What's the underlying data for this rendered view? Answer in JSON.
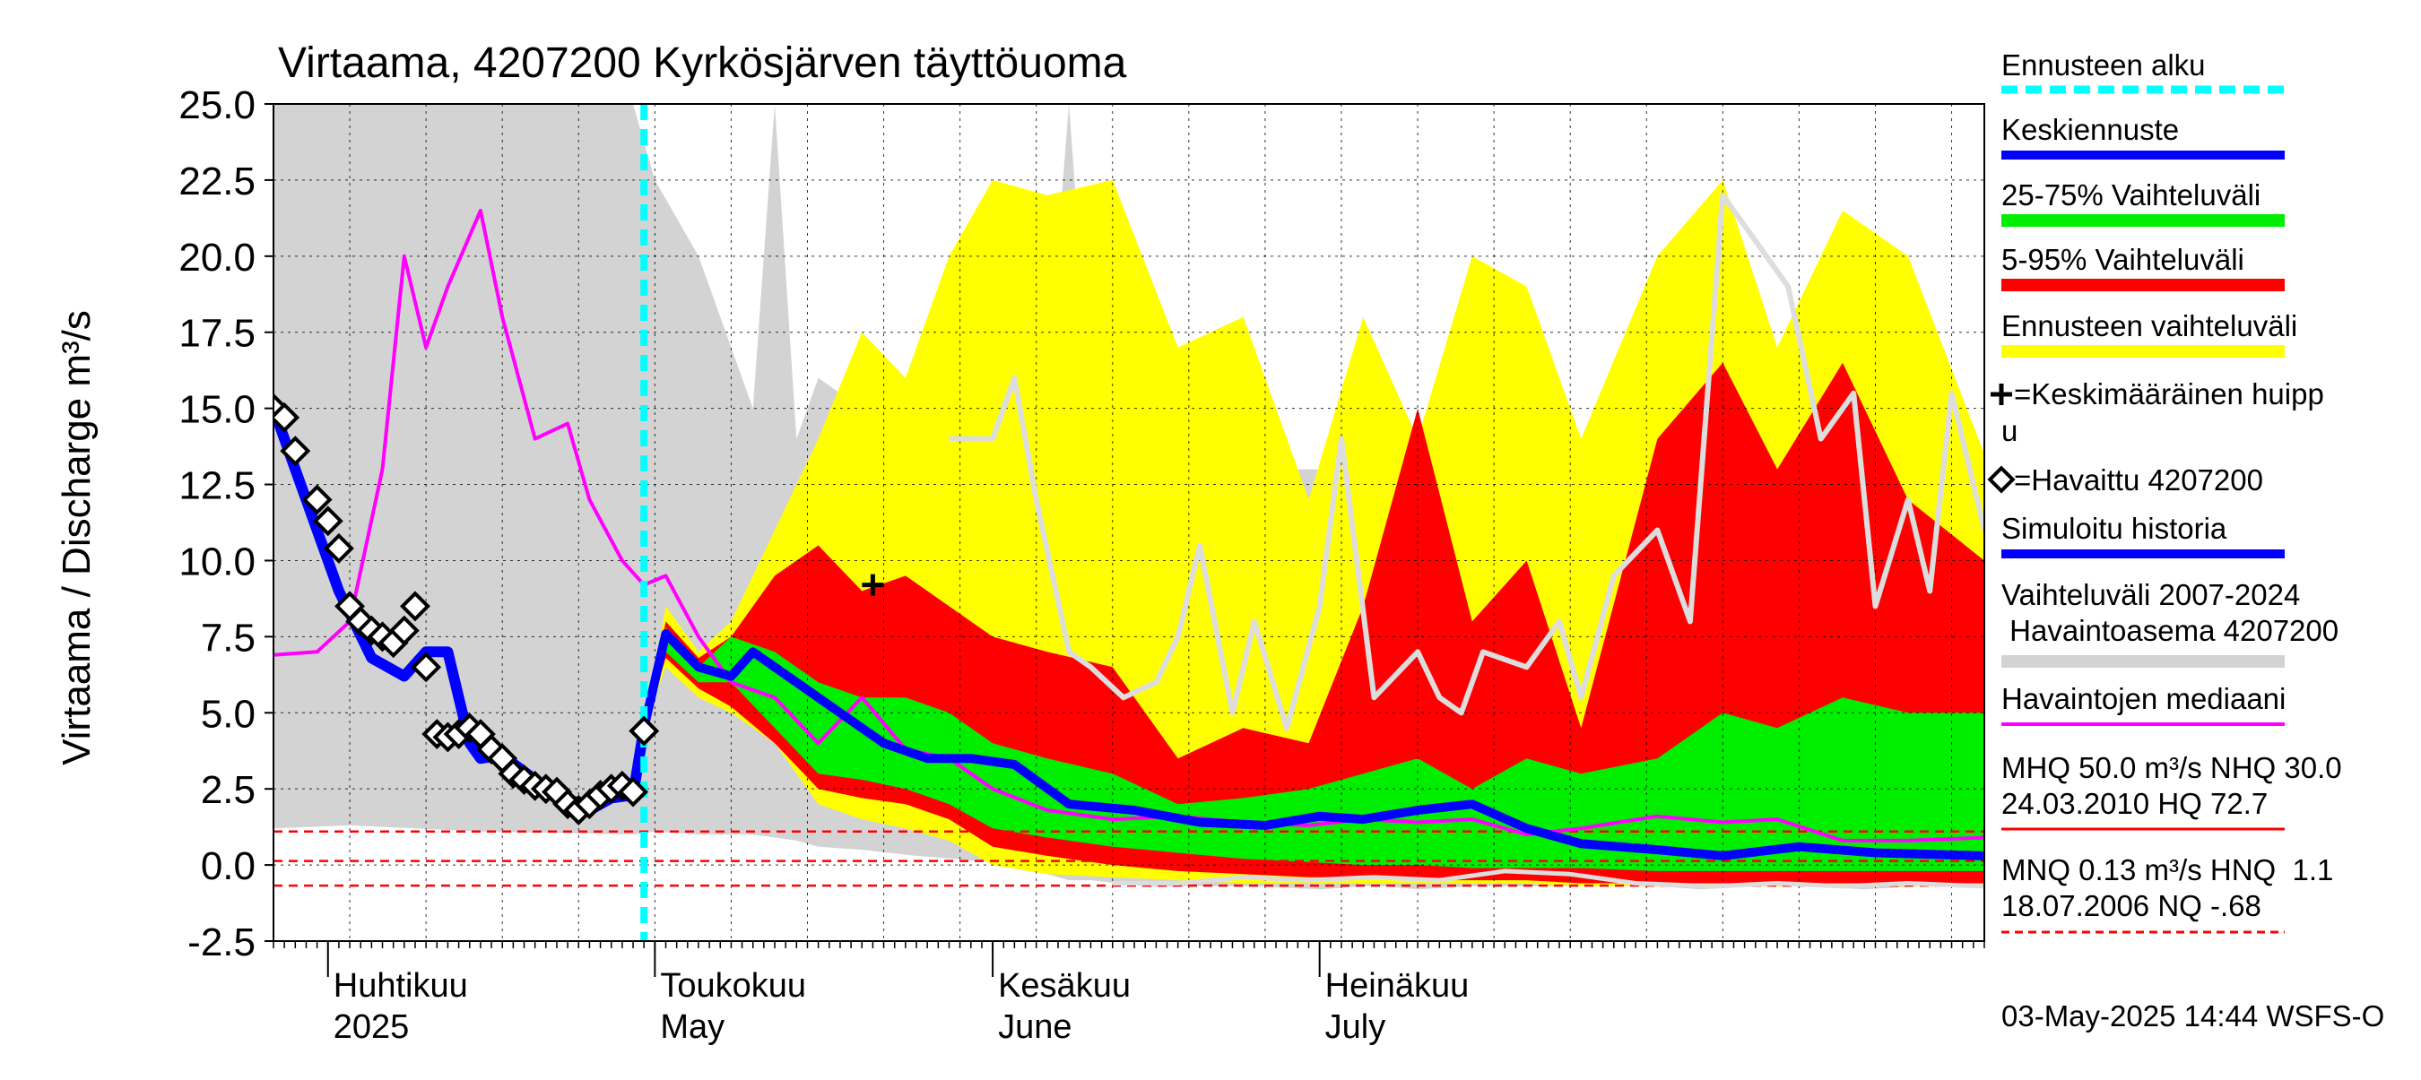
{
  "chart_data": {
    "type": "area",
    "title": "Virtaama, 4207200 Kyrkösjärven täyttöuoma",
    "ylabel": "Virtaama / Discharge    m³/s",
    "ylim": [
      -2.5,
      25.0
    ],
    "yticks": [
      "25.0",
      "22.5",
      "20.0",
      "17.5",
      "15.0",
      "12.5",
      "10.0",
      "7.5",
      "5.0",
      "2.5",
      "0.0",
      "-2.5"
    ],
    "xlim": [
      "2025-03-27",
      "2025-08-31"
    ],
    "x_months": [
      {
        "date": "2025-04-01",
        "fi": "Huhtikuu",
        "en": "2025"
      },
      {
        "date": "2025-05-01",
        "fi": "Toukokuu",
        "en": "May"
      },
      {
        "date": "2025-06-01",
        "fi": "Kesäkuu",
        "en": "June"
      },
      {
        "date": "2025-07-01",
        "fi": "Heinäkuu",
        "en": "July"
      }
    ],
    "grid": true,
    "forecast_start": "2025-04-30",
    "colors": {
      "history_range": "#d3d3d3",
      "forecast_range": "#ffff00",
      "p5_95": "#ff0000",
      "p25_75": "#00ee00",
      "mean_forecast": "#0000ff",
      "simulated": "#0000ff",
      "median_obs": "#ff00ff",
      "forecast_start": "#00ffff",
      "history_max": "#dddddd",
      "ref_lines": "#ff0000"
    },
    "history_range": {
      "x": [
        "2025-03-27",
        "2025-04-03",
        "2025-04-15",
        "2025-04-29",
        "2025-05-01",
        "2025-05-05",
        "2025-05-10",
        "2025-05-12",
        "2025-05-14",
        "2025-05-16",
        "2025-05-20",
        "2025-05-25",
        "2025-06-01",
        "2025-06-06",
        "2025-06-08",
        "2025-06-10",
        "2025-06-15",
        "2025-06-20",
        "2025-06-25",
        "2025-07-01",
        "2025-07-05",
        "2025-07-07",
        "2025-07-10",
        "2025-07-15",
        "2025-07-20",
        "2025-07-25",
        "2025-08-01",
        "2025-08-05",
        "2025-08-10",
        "2025-08-15",
        "2025-08-20",
        "2025-08-25",
        "2025-08-31"
      ],
      "upper": [
        25.0,
        25.0,
        25.0,
        25.0,
        22.5,
        20.0,
        15.0,
        25.0,
        14.0,
        16.0,
        15.0,
        14.0,
        15.0,
        16.0,
        25.0,
        15.0,
        14.0,
        14.0,
        13.0,
        13.0,
        14.0,
        14.5,
        13.0,
        14.0,
        13.0,
        12.0,
        11.0,
        12.0,
        11.0,
        12.0,
        10.0,
        9.0,
        8.0
      ],
      "lower": [
        1.2,
        1.3,
        1.1,
        1.0,
        1.1,
        1.0,
        1.0,
        0.9,
        0.8,
        0.6,
        0.5,
        0.3,
        0.1,
        -0.3,
        -0.5,
        -0.5,
        -0.7,
        -0.7,
        -0.7,
        -0.8,
        -0.7,
        -0.7,
        -0.8,
        -0.7,
        -0.7,
        -0.7,
        -0.7,
        -0.8,
        -0.7,
        -0.7,
        -0.8,
        -0.7,
        -0.7
      ]
    },
    "forecast_range": {
      "x": [
        "2025-04-30",
        "2025-05-02",
        "2025-05-05",
        "2025-05-08",
        "2025-05-12",
        "2025-05-16",
        "2025-05-20",
        "2025-05-24",
        "2025-05-28",
        "2025-06-01",
        "2025-06-06",
        "2025-06-12",
        "2025-06-18",
        "2025-06-24",
        "2025-06-30",
        "2025-07-05",
        "2025-07-10",
        "2025-07-15",
        "2025-07-20",
        "2025-07-25",
        "2025-08-01",
        "2025-08-07",
        "2025-08-12",
        "2025-08-18",
        "2025-08-24",
        "2025-08-31"
      ],
      "upper": [
        4.5,
        8.5,
        7.0,
        8.0,
        11.0,
        14.0,
        17.5,
        16.0,
        20.0,
        22.5,
        22.0,
        22.5,
        17.0,
        18.0,
        12.0,
        18.0,
        14.0,
        20.0,
        19.0,
        14.0,
        20.0,
        22.5,
        17.0,
        21.5,
        20.0,
        13.5
      ],
      "lower": [
        4.5,
        6.5,
        5.5,
        5.0,
        4.0,
        2.0,
        1.5,
        1.2,
        0.8,
        0.0,
        -0.3,
        -0.4,
        -0.5,
        -0.6,
        -0.6,
        -0.6,
        -0.6,
        -0.6,
        -0.6,
        -0.7,
        -0.7,
        -0.7,
        -0.7,
        -0.7,
        -0.7,
        -0.7
      ]
    },
    "p5_95": {
      "x": [
        "2025-04-30",
        "2025-05-02",
        "2025-05-05",
        "2025-05-08",
        "2025-05-12",
        "2025-05-16",
        "2025-05-20",
        "2025-05-24",
        "2025-05-28",
        "2025-06-01",
        "2025-06-06",
        "2025-06-12",
        "2025-06-18",
        "2025-06-24",
        "2025-06-30",
        "2025-07-05",
        "2025-07-10",
        "2025-07-15",
        "2025-07-20",
        "2025-07-25",
        "2025-08-01",
        "2025-08-07",
        "2025-08-12",
        "2025-08-18",
        "2025-08-24",
        "2025-08-31"
      ],
      "upper": [
        4.5,
        8.0,
        6.8,
        7.5,
        9.5,
        10.5,
        9.0,
        9.5,
        8.5,
        7.5,
        7.0,
        6.5,
        3.5,
        4.5,
        4.0,
        8.5,
        15.0,
        8.0,
        10.0,
        4.5,
        14.0,
        16.5,
        13.0,
        16.5,
        12.0,
        10.0
      ],
      "lower": [
        4.5,
        6.8,
        5.8,
        5.2,
        4.0,
        2.5,
        2.2,
        2.0,
        1.5,
        0.6,
        0.3,
        0.0,
        -0.2,
        -0.3,
        -0.4,
        -0.4,
        -0.5,
        -0.5,
        -0.5,
        -0.6,
        -0.6,
        -0.6,
        -0.6,
        -0.6,
        -0.6,
        -0.6
      ]
    },
    "p25_75": {
      "x": [
        "2025-04-30",
        "2025-05-02",
        "2025-05-05",
        "2025-05-08",
        "2025-05-12",
        "2025-05-16",
        "2025-05-20",
        "2025-05-24",
        "2025-05-28",
        "2025-06-01",
        "2025-06-06",
        "2025-06-12",
        "2025-06-18",
        "2025-06-24",
        "2025-06-30",
        "2025-07-05",
        "2025-07-10",
        "2025-07-15",
        "2025-07-20",
        "2025-07-25",
        "2025-08-01",
        "2025-08-07",
        "2025-08-12",
        "2025-08-18",
        "2025-08-24",
        "2025-08-31"
      ],
      "upper": [
        4.5,
        7.8,
        6.5,
        7.5,
        7.0,
        6.0,
        5.5,
        5.5,
        5.0,
        4.0,
        3.5,
        3.0,
        2.0,
        2.2,
        2.5,
        3.0,
        3.5,
        2.5,
        3.5,
        3.0,
        3.5,
        5.0,
        4.5,
        5.5,
        5.0,
        5.0
      ],
      "lower": [
        4.5,
        7.0,
        6.0,
        6.0,
        4.5,
        3.0,
        2.8,
        2.5,
        2.0,
        1.2,
        0.9,
        0.6,
        0.4,
        0.2,
        0.1,
        0.0,
        0.0,
        -0.1,
        -0.1,
        -0.1,
        -0.2,
        -0.2,
        -0.2,
        -0.2,
        -0.2,
        -0.2
      ]
    },
    "mean_forecast": {
      "x": [
        "2025-04-30",
        "2025-05-02",
        "2025-05-05",
        "2025-05-08",
        "2025-05-10",
        "2025-05-14",
        "2025-05-18",
        "2025-05-22",
        "2025-05-26",
        "2025-05-30",
        "2025-06-03",
        "2025-06-08",
        "2025-06-14",
        "2025-06-20",
        "2025-06-26",
        "2025-07-01",
        "2025-07-05",
        "2025-07-10",
        "2025-07-15",
        "2025-07-20",
        "2025-07-25",
        "2025-08-01",
        "2025-08-07",
        "2025-08-14",
        "2025-08-21",
        "2025-08-31"
      ],
      "y": [
        4.5,
        7.6,
        6.5,
        6.2,
        7.0,
        6.0,
        5.0,
        4.0,
        3.5,
        3.5,
        3.3,
        2.0,
        1.8,
        1.4,
        1.3,
        1.6,
        1.5,
        1.8,
        2.0,
        1.2,
        0.7,
        0.5,
        0.3,
        0.6,
        0.4,
        0.3
      ]
    },
    "simulated_history": {
      "x": [
        "2025-03-27",
        "2025-03-29",
        "2025-04-02",
        "2025-04-05",
        "2025-04-08",
        "2025-04-10",
        "2025-04-12",
        "2025-04-14",
        "2025-04-15",
        "2025-04-17",
        "2025-04-20",
        "2025-04-23",
        "2025-04-25",
        "2025-04-27",
        "2025-04-29",
        "2025-04-30"
      ],
      "y": [
        15.0,
        13.0,
        9.0,
        6.8,
        6.2,
        7.0,
        7.0,
        4.0,
        3.5,
        3.6,
        2.8,
        2.2,
        1.8,
        2.2,
        2.3,
        4.5
      ]
    },
    "median_obs": {
      "x": [
        "2025-03-27",
        "2025-03-31",
        "2025-04-03",
        "2025-04-06",
        "2025-04-08",
        "2025-04-10",
        "2025-04-12",
        "2025-04-15",
        "2025-04-17",
        "2025-04-20",
        "2025-04-23",
        "2025-04-25",
        "2025-04-28",
        "2025-04-30",
        "2025-05-02",
        "2025-05-05",
        "2025-05-08",
        "2025-05-12",
        "2025-05-16",
        "2025-05-20",
        "2025-05-24",
        "2025-05-28",
        "2025-06-01",
        "2025-06-06",
        "2025-06-12",
        "2025-06-18",
        "2025-06-24",
        "2025-06-30",
        "2025-07-05",
        "2025-07-10",
        "2025-07-15",
        "2025-07-20",
        "2025-07-25",
        "2025-08-01",
        "2025-08-07",
        "2025-08-12",
        "2025-08-18",
        "2025-08-24",
        "2025-08-31"
      ],
      "y": [
        6.9,
        7.0,
        8.0,
        13.0,
        20.0,
        17.0,
        19.0,
        21.5,
        18.0,
        14.0,
        14.5,
        12.0,
        10.0,
        9.2,
        9.5,
        7.5,
        6.0,
        5.5,
        4.0,
        5.5,
        3.8,
        3.5,
        2.5,
        1.8,
        1.5,
        1.6,
        1.4,
        1.3,
        1.5,
        1.4,
        1.5,
        1.0,
        1.2,
        1.6,
        1.4,
        1.5,
        0.8,
        0.8,
        0.9
      ]
    },
    "history_max": {
      "x": [
        "2025-05-28",
        "2025-06-01",
        "2025-06-03",
        "2025-06-05",
        "2025-06-08",
        "2025-06-10",
        "2025-06-13",
        "2025-06-16",
        "2025-06-18",
        "2025-06-20",
        "2025-06-23",
        "2025-06-25",
        "2025-06-28",
        "2025-07-01",
        "2025-07-03",
        "2025-07-06",
        "2025-07-10",
        "2025-07-12",
        "2025-07-14",
        "2025-07-16",
        "2025-07-20",
        "2025-07-23",
        "2025-07-25",
        "2025-07-28",
        "2025-08-01",
        "2025-08-04",
        "2025-08-07",
        "2025-08-10",
        "2025-08-13",
        "2025-08-16",
        "2025-08-19",
        "2025-08-21",
        "2025-08-24",
        "2025-08-26",
        "2025-08-28",
        "2025-08-31"
      ],
      "y": [
        14.0,
        14.0,
        16.0,
        12.0,
        7.0,
        6.5,
        5.5,
        6.0,
        7.5,
        10.5,
        5.0,
        8.0,
        4.5,
        8.5,
        14.0,
        5.5,
        7.0,
        5.5,
        5.0,
        7.0,
        6.5,
        8.0,
        5.5,
        9.5,
        11.0,
        8.0,
        22.0,
        20.5,
        19.0,
        14.0,
        15.5,
        8.5,
        12.0,
        9.0,
        15.5,
        11.0
      ]
    },
    "history_min": {
      "x": [
        "2025-06-12",
        "2025-06-18",
        "2025-06-24",
        "2025-06-30",
        "2025-07-06",
        "2025-07-12",
        "2025-07-18",
        "2025-07-24",
        "2025-07-30",
        "2025-08-06",
        "2025-08-12",
        "2025-08-18",
        "2025-08-24",
        "2025-08-31"
      ],
      "y": [
        -0.6,
        -0.6,
        -0.4,
        -0.5,
        -0.4,
        -0.5,
        -0.2,
        -0.3,
        -0.6,
        -0.7,
        -0.6,
        -0.7,
        -0.6,
        -0.7
      ]
    },
    "observed": {
      "x": [
        "2025-03-27",
        "2025-03-28",
        "2025-03-29",
        "2025-03-31",
        "2025-04-01",
        "2025-04-02",
        "2025-04-03",
        "2025-04-04",
        "2025-04-05",
        "2025-04-06",
        "2025-04-07",
        "2025-04-08",
        "2025-04-09",
        "2025-04-10",
        "2025-04-11",
        "2025-04-12",
        "2025-04-13",
        "2025-04-14",
        "2025-04-15",
        "2025-04-16",
        "2025-04-17",
        "2025-04-18",
        "2025-04-19",
        "2025-04-20",
        "2025-04-21",
        "2025-04-22",
        "2025-04-23",
        "2025-04-24",
        "2025-04-25",
        "2025-04-26",
        "2025-04-27",
        "2025-04-28",
        "2025-04-29",
        "2025-04-30"
      ],
      "y": [
        15.0,
        14.7,
        13.6,
        12.0,
        11.3,
        10.4,
        8.5,
        8.0,
        7.7,
        7.5,
        7.3,
        7.7,
        8.5,
        6.5,
        4.3,
        4.2,
        4.3,
        4.5,
        4.3,
        3.8,
        3.5,
        3.0,
        2.8,
        2.6,
        2.5,
        2.4,
        2.0,
        1.8,
        2.0,
        2.3,
        2.5,
        2.6,
        2.4,
        4.4
      ]
    },
    "mean_peak": {
      "x": "2025-05-21",
      "y": 9.2
    },
    "ref_lines": [
      1.1,
      0.13,
      -0.68
    ],
    "legend": [
      "Ennusteen alku",
      "Keskiennuste",
      "25-75% Vaihteluväli",
      "5-95% Vaihteluväli",
      "Ennusteen vaihteluväli",
      "=Keskimääräinen huipp",
      "u",
      "=Havaittu 4207200",
      "Simuloitu historia",
      "Vaihteluväli 2007-2024",
      " Havaintoasema 4207200",
      "Havaintojen mediaani",
      "MHQ 50.0 m³/s NHQ 30.0",
      "24.03.2010 HQ 72.7",
      "MNQ 0.13 m³/s HNQ  1.1",
      "18.07.2006 NQ -.68"
    ],
    "footer": "03-May-2025 14:44 WSFS-O"
  }
}
